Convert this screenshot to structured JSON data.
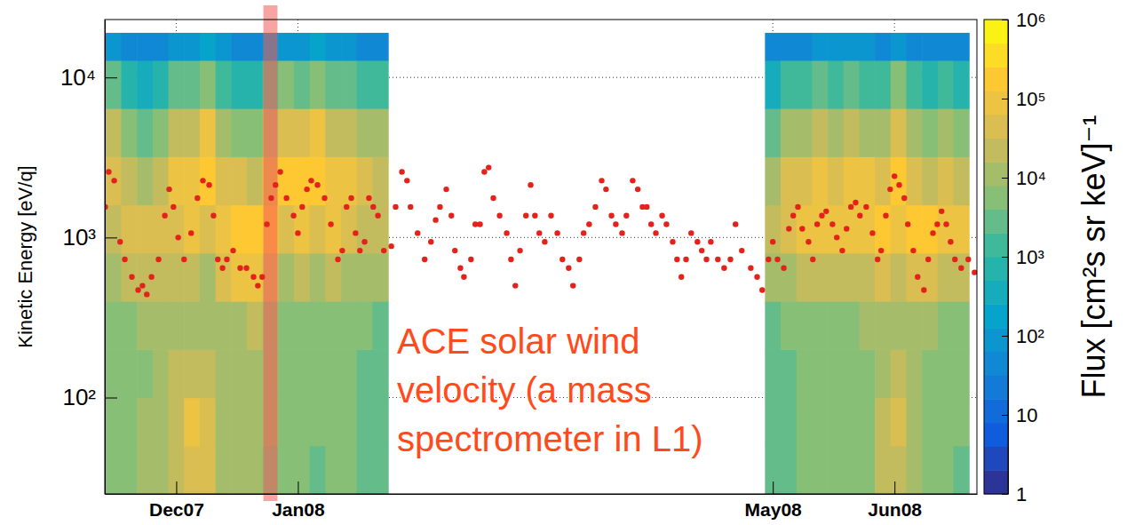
{
  "chart_data": {
    "type": "heatmap",
    "ylabel": "Kinetic Energy [eV/q]",
    "log": "y",
    "grid": true,
    "xlim": [
      -18.2,
      204
    ],
    "xticks": [
      {
        "value": 0,
        "label": "Dec07"
      },
      {
        "value": 31,
        "label": "Jan08"
      },
      {
        "value": 152,
        "label": "May08"
      },
      {
        "value": 183,
        "label": "Jun08"
      }
    ],
    "ylim": [
      25,
      23000
    ],
    "yticks": [
      {
        "value": 100,
        "label": "10²"
      },
      {
        "value": 1000,
        "label": "10³"
      },
      {
        "value": 10000,
        "label": "10⁴"
      }
    ],
    "annotation": "ACE solar wind velocity (a mass spectrometer in L1)",
    "highlight": [
      22.2,
      25.8
    ],
    "heatmap": {
      "zlabel": "Flux [cm²s sr keV]⁻¹",
      "zlim": [
        1,
        1000000
      ],
      "zticks": [
        1,
        10,
        {
          "value": 100,
          "label": "10²"
        },
        {
          "value": 1000,
          "label": "10³"
        },
        {
          "value": 10000,
          "label": "10⁴"
        },
        {
          "value": 100000,
          "label": "10⁵"
        },
        {
          "value": 1000000,
          "label": "10⁶"
        }
      ],
      "x_edges": [
        -18,
        -14,
        -10,
        -6,
        -2,
        2,
        6,
        10,
        14,
        18,
        22,
        26,
        30,
        34,
        38,
        42,
        46,
        50,
        54,
        58,
        62,
        66,
        70,
        74,
        78,
        82,
        86,
        90,
        94,
        98,
        102,
        106,
        110,
        114,
        118,
        122,
        126,
        130,
        134,
        138,
        142,
        146,
        150,
        154,
        158,
        162,
        166,
        170,
        174,
        178,
        182,
        186,
        190,
        194,
        198,
        202
      ],
      "y_edges": [
        25,
        50,
        100,
        200,
        400,
        800,
        1600,
        3200,
        6400,
        12800,
        19000
      ],
      "z": [
        [
          4000,
          4000,
          4000,
          5000,
          10000,
          30000,
          50000,
          20000,
          3000,
          100
        ],
        [
          5000,
          5000,
          5000,
          6000,
          20000,
          50000,
          20000,
          5000,
          800,
          50
        ],
        [
          8000,
          8000,
          7000,
          8000,
          30000,
          60000,
          15000,
          3000,
          400,
          40
        ],
        [
          10000,
          10000,
          8000,
          10000,
          30000,
          60000,
          20000,
          4000,
          600,
          50
        ],
        [
          20000,
          30000,
          20000,
          10000,
          20000,
          50000,
          120000,
          30000,
          3000,
          100
        ],
        [
          50000,
          80000,
          30000,
          15000,
          30000,
          80000,
          100000,
          30000,
          3000,
          100
        ],
        [
          40000,
          60000,
          20000,
          10000,
          15000,
          50000,
          200000,
          80000,
          6000,
          150
        ],
        [
          10000,
          15000,
          10000,
          10000,
          40000,
          100000,
          50000,
          10000,
          1500,
          80
        ],
        [
          8000,
          10000,
          10000,
          15000,
          80000,
          200000,
          40000,
          6000,
          800,
          60
        ],
        [
          10000,
          10000,
          10000,
          20000,
          100000,
          250000,
          30000,
          4000,
          600,
          50
        ],
        [
          6000,
          8000,
          8000,
          10000,
          50000,
          200000,
          100000,
          20000,
          2000,
          100
        ],
        [
          4000,
          5000,
          5000,
          6000,
          15000,
          60000,
          200000,
          50000,
          4000,
          120
        ],
        [
          4000,
          5000,
          5000,
          6000,
          20000,
          80000,
          150000,
          40000,
          3000,
          100
        ],
        [
          3000,
          4000,
          4000,
          5000,
          10000,
          40000,
          200000,
          80000,
          6000,
          150
        ],
        [
          4000,
          5000,
          5000,
          6000,
          20000,
          80000,
          100000,
          30000,
          3000,
          100
        ],
        [
          4000,
          4000,
          4000,
          5000,
          15000,
          50000,
          80000,
          20000,
          2000,
          80
        ],
        [
          3000,
          3000,
          3000,
          4000,
          10000,
          30000,
          50000,
          15000,
          1500,
          60
        ],
        [
          2000,
          2000,
          2000,
          3000,
          8000,
          20000,
          30000,
          8000,
          1000,
          50
        ],
        null,
        null,
        null,
        null,
        null,
        null,
        null,
        null,
        null,
        null,
        null,
        null,
        null,
        null,
        null,
        null,
        null,
        null,
        null,
        null,
        null,
        null,
        null,
        null,
        [
          2000,
          2000,
          2000,
          3000,
          10000,
          30000,
          15000,
          3000,
          500,
          40
        ],
        [
          3000,
          3000,
          3000,
          4000,
          15000,
          50000,
          50000,
          10000,
          1000,
          60
        ],
        [
          4000,
          4000,
          4000,
          5000,
          20000,
          80000,
          60000,
          12000,
          1200,
          60
        ],
        [
          4000,
          5000,
          5000,
          6000,
          20000,
          80000,
          80000,
          20000,
          2000,
          80
        ],
        [
          4000,
          5000,
          5000,
          6000,
          30000,
          100000,
          60000,
          15000,
          1500,
          70
        ],
        [
          4000,
          5000,
          5000,
          6000,
          20000,
          80000,
          100000,
          20000,
          2000,
          80
        ],
        [
          5000,
          6000,
          6000,
          8000,
          30000,
          120000,
          80000,
          15000,
          1500,
          70
        ],
        [
          20000,
          30000,
          15000,
          10000,
          40000,
          150000,
          60000,
          10000,
          1200,
          60
        ],
        [
          30000,
          50000,
          20000,
          10000,
          20000,
          80000,
          200000,
          60000,
          5000,
          120
        ],
        [
          8000,
          10000,
          8000,
          10000,
          50000,
          150000,
          50000,
          10000,
          1000,
          60
        ],
        [
          5000,
          6000,
          6000,
          8000,
          50000,
          200000,
          30000,
          5000,
          600,
          50
        ],
        [
          4000,
          5000,
          5000,
          6000,
          30000,
          100000,
          60000,
          10000,
          1000,
          60
        ],
        [
          3000,
          4000,
          4000,
          5000,
          30000,
          100000,
          30000,
          5000,
          600,
          40
        ]
      ]
    },
    "x": [
      -18.1,
      -17.2,
      -15.8,
      -14.3,
      -13.1,
      -11.3,
      -9.7,
      -8.6,
      -7.5,
      -6.3,
      -4.5,
      -2.9,
      -1.8,
      -0.7,
      0.5,
      2.0,
      3.8,
      5.4,
      6.8,
      8.4,
      9.5,
      10.6,
      11.8,
      12.9,
      14.5,
      16.3,
      17.9,
      19.7,
      20.8,
      21.9,
      23.1,
      24.2,
      25.3,
      26.5,
      28.1,
      29.9,
      31.0,
      32.1,
      33.3,
      34.4,
      36.0,
      37.8,
      39.4,
      41.2,
      42.3,
      43.4,
      44.6,
      45.7,
      46.8,
      48.0,
      49.1,
      50.2,
      51.4,
      52.9,
      54.8,
      55.9,
      57.5,
      58.8,
      59.7,
      61.5,
      63.3,
      64.9,
      66.1,
      67.2,
      68.8,
      70.1,
      71.0,
      72.4,
      73.3,
      75.1,
      76.2,
      77.4,
      78.5,
      79.6,
      80.8,
      82.4,
      84.2,
      85.3,
      86.4,
      87.6,
      89.1,
      90.3,
      91.4,
      92.5,
      93.9,
      95.5,
      97.1,
      98.4,
      100.0,
      101.1,
      102.7,
      103.8,
      105.2,
      106.8,
      108.4,
      109.5,
      110.9,
      112.0,
      113.6,
      114.7,
      116.3,
      117.6,
      118.8,
      119.9,
      121.0,
      122.2,
      123.8,
      124.9,
      126.5,
      127.6,
      128.7,
      129.9,
      131.2,
      132.8,
      133.9,
      135.1,
      136.2,
      138.0,
      139.6,
      141.2,
      142.5,
      144.1,
      146.4,
      148.0,
      149.3,
      150.9,
      152.0,
      153.2,
      154.8,
      156.1,
      157.2,
      158.4,
      159.5,
      161.1,
      162.2,
      163.3,
      164.5,
      165.6,
      167.2,
      168.3,
      169.7,
      170.8,
      171.9,
      173.1,
      174.2,
      175.8,
      177.4,
      178.7,
      179.6,
      180.8,
      181.9,
      183.0,
      184.2,
      185.5,
      186.4,
      187.8,
      188.9,
      190.5,
      191.6,
      192.8,
      193.9,
      195.0,
      196.2,
      197.3,
      198.4,
      200.0,
      201.8,
      203.4
    ],
    "series": [
      {
        "type": "scatter",
        "marker": "circle",
        "color": "#e3231b",
        "values": [
          1553,
          2570,
          2265,
          939,
          730,
          567,
          470,
          500,
          441,
          567,
          730,
          1370,
          2000,
          1553,
          1000,
          730,
          1065,
          1762,
          2265,
          2127,
          1370,
          730,
          644,
          730,
          828,
          644,
          644,
          567,
          500,
          567,
          1208,
          1762,
          2127,
          2570,
          1762,
          1370,
          1065,
          1553,
          2000,
          2265,
          2127,
          1762,
          1208,
          730,
          828,
          1553,
          1762,
          1065,
          828,
          939,
          1762,
          1553,
          1370,
          828,
          882,
          1553,
          2570,
          2265,
          1553,
          1065,
          730,
          939,
          1286,
          1553,
          2000,
          1370,
          828,
          644,
          567,
          730,
          1208,
          1208,
          2570,
          2736,
          1762,
          1370,
          1065,
          730,
          500,
          828,
          1370,
          2127,
          1370,
          1065,
          939,
          1370,
          1065,
          730,
          644,
          500,
          730,
          1065,
          1208,
          1553,
          2265,
          2000,
          1370,
          1208,
          1065,
          1370,
          2265,
          2000,
          1553,
          1553,
          1208,
          1065,
          1370,
          1208,
          939,
          730,
          567,
          730,
          1065,
          939,
          828,
          730,
          939,
          730,
          644,
          730,
          1208,
          828,
          644,
          567,
          470,
          730,
          939,
          730,
          644,
          1134,
          1370,
          1553,
          1134,
          939,
          730,
          1208,
          1370,
          1458,
          1208,
          1000,
          828,
          1134,
          1553,
          1655,
          1370,
          1553,
          1065,
          730,
          828,
          1370,
          2000,
          2415,
          2127,
          1762,
          1208,
          828,
          567,
          470,
          730,
          1065,
          1208,
          1458,
          1208,
          939,
          730,
          644,
          730,
          605
        ]
      }
    ]
  }
}
